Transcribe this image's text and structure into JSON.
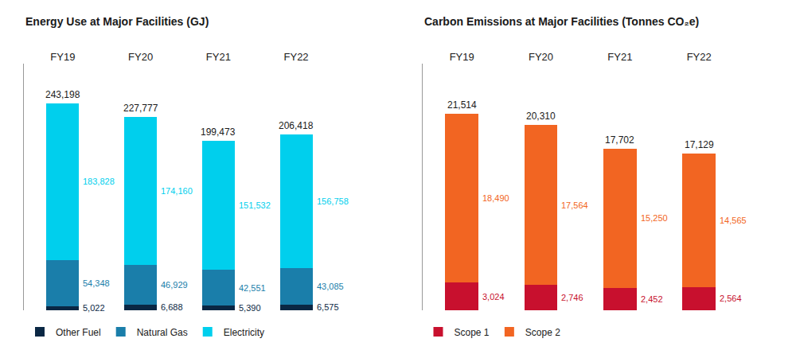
{
  "chart_data": [
    {
      "type": "bar",
      "title": "Energy Use at Major Facilities (GJ)",
      "categories": [
        "FY19",
        "FY20",
        "FY21",
        "FY22"
      ],
      "series": [
        {
          "name": "Other Fuel",
          "color": "#0A2744",
          "values": [
            5022,
            6688,
            5390,
            6575
          ],
          "value_labels": [
            "5,022",
            "6,688",
            "5,390",
            "6,575"
          ]
        },
        {
          "name": "Natural Gas",
          "color": "#1A7EAA",
          "values": [
            54348,
            46929,
            42551,
            43085
          ],
          "value_labels": [
            "54,348",
            "46,929",
            "42,551",
            "43,085"
          ]
        },
        {
          "name": "Electricity",
          "color": "#00CFED",
          "values": [
            183828,
            174160,
            151532,
            156758
          ],
          "value_labels": [
            "183,828",
            "174,160",
            "151,532",
            "156,758"
          ]
        }
      ],
      "totals": {
        "values": [
          243198,
          227777,
          199473,
          206418
        ],
        "value_labels": [
          "243,198",
          "227,777",
          "199,473",
          "206,418"
        ]
      },
      "ylim": [
        0,
        290000
      ],
      "stacked": true,
      "data_labels": true,
      "tick_labels": "x",
      "grid": false,
      "legend": "lower left"
    },
    {
      "type": "bar",
      "title": "Carbon Emissions at Major Facilities (Tonnes CO₂e)",
      "categories": [
        "FY19",
        "FY20",
        "FY21",
        "FY22"
      ],
      "series": [
        {
          "name": "Scope 1",
          "color": "#C8102E",
          "values": [
            3024,
            2746,
            2452,
            2564
          ],
          "value_labels": [
            "3,024",
            "2,746",
            "2,452",
            "2,564"
          ]
        },
        {
          "name": "Scope 2",
          "color": "#F26522",
          "values": [
            18490,
            17564,
            15250,
            14565
          ],
          "value_labels": [
            "18,490",
            "17,564",
            "15,250",
            "14,565"
          ]
        }
      ],
      "totals": {
        "values": [
          21514,
          20310,
          17702,
          17129
        ],
        "value_labels": [
          "21,514",
          "20,310",
          "17,702",
          "17,129"
        ]
      },
      "ylim": [
        0,
        27000
      ],
      "stacked": true,
      "data_labels": true,
      "tick_labels": "x",
      "grid": false,
      "legend": "lower left"
    }
  ]
}
